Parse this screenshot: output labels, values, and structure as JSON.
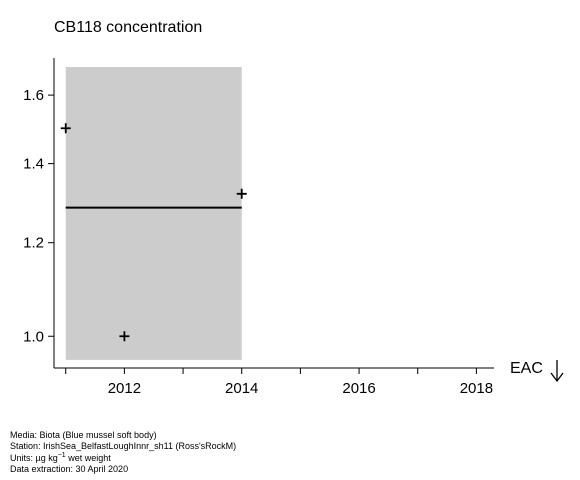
{
  "chart_data": {
    "type": "scatter",
    "title": "CB118 concentration",
    "x_domain": [
      2010.8,
      2018.3
    ],
    "y_domain": [
      0.94,
      1.72
    ],
    "y_scale": "log",
    "xticks": [
      {
        "value": 2011,
        "label": ""
      },
      {
        "value": 2012,
        "label": "2012"
      },
      {
        "value": 2013,
        "label": ""
      },
      {
        "value": 2014,
        "label": "2014"
      },
      {
        "value": 2015,
        "label": ""
      },
      {
        "value": 2016,
        "label": "2016"
      },
      {
        "value": 2017,
        "label": ""
      },
      {
        "value": 2018,
        "label": "2018"
      }
    ],
    "yticks": [
      {
        "value": 1.0,
        "label": "1.0"
      },
      {
        "value": 1.2,
        "label": "1.2"
      },
      {
        "value": 1.4,
        "label": "1.4"
      },
      {
        "value": 1.6,
        "label": "1.6"
      }
    ],
    "points": [
      {
        "x": 2011,
        "y": 1.5
      },
      {
        "x": 2012,
        "y": 1.0
      },
      {
        "x": 2014,
        "y": 1.32
      }
    ],
    "trend": {
      "x": [
        2011,
        2014
      ],
      "y": [
        1.285,
        1.285
      ]
    },
    "band": {
      "x": [
        2011,
        2014
      ],
      "y": [
        0.955,
        1.69
      ]
    },
    "band_color": "#cccccc",
    "eac_label": "EAC",
    "eac_icon": "down-arrow-icon"
  },
  "footer": {
    "media": "Media: Biota (Blue mussel soft body)",
    "station": "Station: IrishSea_BelfastLoughInnr_sh11 (Ross'sRockM)",
    "units_prefix": "Units:  µg kg",
    "units_exp": "−1",
    "units_suffix": " wet weight",
    "extraction": "Data extraction: 30 April 2020"
  }
}
